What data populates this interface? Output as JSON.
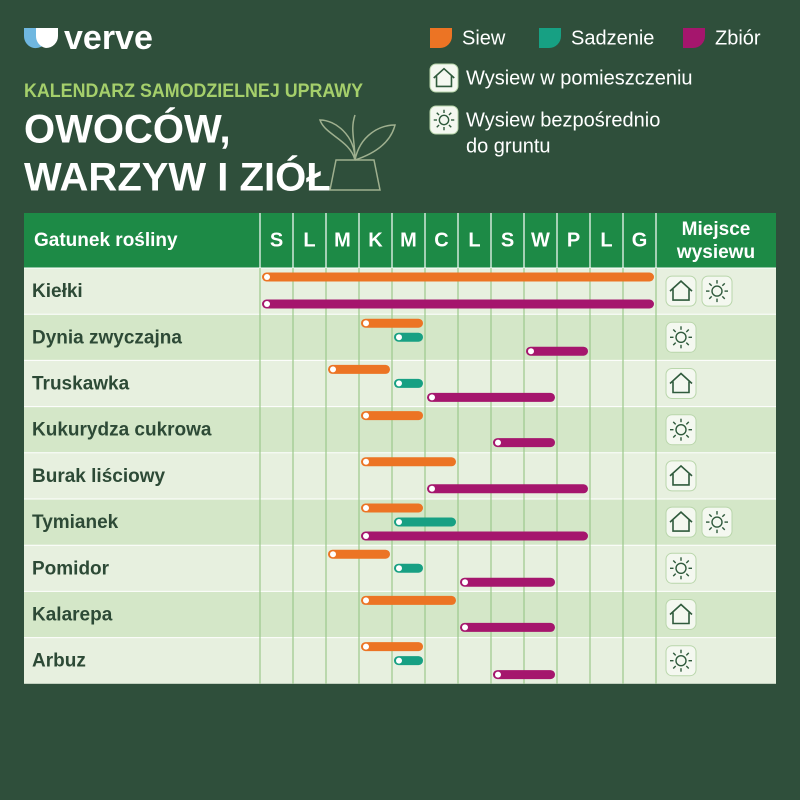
{
  "logo": "verve",
  "subtitle": "KALENDARZ SAMODZIELNEJ UPRAWY",
  "title": [
    "OWOCÓW,",
    "WARZYW I ZIÓŁ"
  ],
  "legend": {
    "activities": [
      {
        "name": "Siew",
        "color": "#ec7424"
      },
      {
        "name": "Sadzenie",
        "color": "#17a083"
      },
      {
        "name": "Zbiór",
        "color": "#a5166d"
      }
    ],
    "places": [
      [
        "Wysiew w pomieszczeniu"
      ],
      [
        "Wysiew bezpośrednio",
        "do gruntu"
      ]
    ]
  },
  "table": {
    "header": "Gatunek rośliny",
    "months": [
      "S",
      "L",
      "M",
      "K",
      "M",
      "C",
      "L",
      "S",
      "W",
      "P",
      "L",
      "G"
    ],
    "place_header": [
      "Miejsce",
      "wysiewu"
    ],
    "rows": [
      {
        "name": "Kiełki",
        "bars": [
          {
            "activity": 0,
            "start": 0,
            "end": 12
          },
          {
            "activity": 2,
            "start": 0,
            "end": 12
          }
        ],
        "places": [
          0,
          1
        ]
      },
      {
        "name": "Dynia zwyczajna",
        "bars": [
          {
            "activity": 0,
            "start": 3,
            "end": 5
          },
          {
            "activity": 1,
            "start": 4,
            "end": 5
          },
          {
            "activity": 2,
            "start": 8,
            "end": 10
          }
        ],
        "places": [
          1
        ]
      },
      {
        "name": "Truskawka",
        "bars": [
          {
            "activity": 0,
            "start": 2,
            "end": 4
          },
          {
            "activity": 1,
            "start": 4,
            "end": 5
          },
          {
            "activity": 2,
            "start": 5,
            "end": 9
          }
        ],
        "places": [
          0
        ]
      },
      {
        "name": "Kukurydza cukrowa",
        "bars": [
          {
            "activity": 0,
            "start": 3,
            "end": 5
          },
          {
            "activity": 2,
            "start": 7,
            "end": 9
          }
        ],
        "places": [
          1
        ]
      },
      {
        "name": "Burak liściowy",
        "bars": [
          {
            "activity": 0,
            "start": 3,
            "end": 6
          },
          {
            "activity": 2,
            "start": 5,
            "end": 10
          }
        ],
        "places": [
          0
        ]
      },
      {
        "name": "Tymianek",
        "bars": [
          {
            "activity": 0,
            "start": 3,
            "end": 5
          },
          {
            "activity": 1,
            "start": 4,
            "end": 6
          },
          {
            "activity": 2,
            "start": 3,
            "end": 10
          }
        ],
        "places": [
          0,
          1
        ]
      },
      {
        "name": "Pomidor",
        "bars": [
          {
            "activity": 0,
            "start": 2,
            "end": 4
          },
          {
            "activity": 1,
            "start": 4,
            "end": 5
          },
          {
            "activity": 2,
            "start": 6,
            "end": 9
          }
        ],
        "places": [
          1
        ]
      },
      {
        "name": "Kalarepa",
        "bars": [
          {
            "activity": 0,
            "start": 3,
            "end": 6
          },
          {
            "activity": 2,
            "start": 6,
            "end": 9
          }
        ],
        "places": [
          0
        ]
      },
      {
        "name": "Arbuz",
        "bars": [
          {
            "activity": 0,
            "start": 3,
            "end": 5
          },
          {
            "activity": 1,
            "start": 4,
            "end": 5
          },
          {
            "activity": 2,
            "start": 7,
            "end": 9
          }
        ],
        "places": [
          1
        ]
      }
    ]
  }
}
